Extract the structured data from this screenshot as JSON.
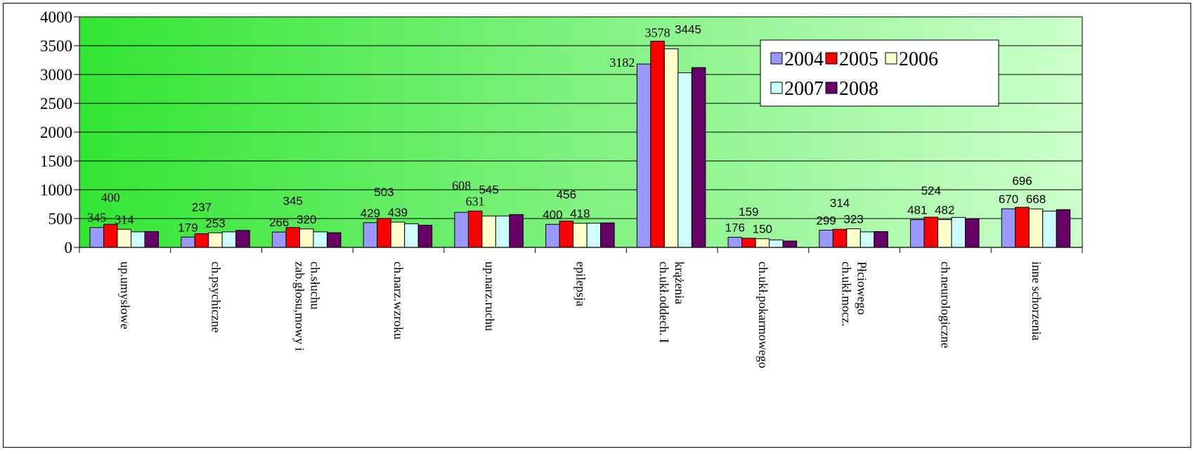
{
  "chart_data": {
    "type": "bar",
    "title": "",
    "xlabel": "",
    "ylabel": "",
    "ylim": [
      0,
      4000
    ],
    "yticks": [
      "0",
      "500",
      "1000",
      "1500",
      "2000",
      "2500",
      "3000",
      "3500",
      "4000"
    ],
    "grid": true,
    "legend_position": "top-right",
    "categories": [
      [
        "up.umysłowe"
      ],
      [
        "ch.psychiczne"
      ],
      [
        "zab.głosu,mowy i",
        "ch.słuchu"
      ],
      [
        "ch.narz.wzroku"
      ],
      [
        "up.narz.ruchu"
      ],
      [
        "epilepsja"
      ],
      [
        "ch.ukł.oddech. I",
        "krążenia"
      ],
      [
        "ch.ukł.pokarmowego"
      ],
      [
        "ch.ukł.mocz.",
        "Płciowego"
      ],
      [
        "ch.neurologiczne"
      ],
      [
        "inne schorzenia"
      ]
    ],
    "series": [
      {
        "name": "2004",
        "color": "#9999ff",
        "values": [
          345,
          179,
          266,
          429,
          608,
          400,
          3182,
          176,
          299,
          481,
          670
        ]
      },
      {
        "name": "2005",
        "color": "#ff0000",
        "values": [
          400,
          237,
          345,
          503,
          631,
          456,
          3578,
          159,
          314,
          524,
          696
        ]
      },
      {
        "name": "2006",
        "color": "#ffffcc",
        "values": [
          314,
          253,
          320,
          439,
          545,
          418,
          3445,
          150,
          323,
          482,
          668
        ]
      },
      {
        "name": "2007",
        "color": "#ccffff",
        "values": [
          270,
          270,
          270,
          410,
          545,
          420,
          3030,
          130,
          270,
          520,
          630
        ]
      },
      {
        "name": "2008",
        "color": "#660066",
        "values": [
          275,
          295,
          255,
          385,
          570,
          425,
          3120,
          110,
          275,
          495,
          655
        ]
      }
    ],
    "data_labels": [
      {
        "text": "345",
        "cat": 0,
        "series": 0,
        "font": "serif",
        "row": 0
      },
      {
        "text": "400",
        "cat": 0,
        "series": 1,
        "font": "serif",
        "row": 1
      },
      {
        "text": "314",
        "cat": 0,
        "series": 2,
        "font": "serif",
        "row": 0
      },
      {
        "text": "179",
        "cat": 1,
        "series": 0,
        "font": "sans",
        "row": 0
      },
      {
        "text": "237",
        "cat": 1,
        "series": 1,
        "font": "sans",
        "row": 1
      },
      {
        "text": "253",
        "cat": 1,
        "series": 2,
        "font": "sans",
        "row": 0
      },
      {
        "text": "266",
        "cat": 2,
        "series": 0,
        "font": "sans",
        "row": 0
      },
      {
        "text": "345",
        "cat": 2,
        "series": 1,
        "font": "sans",
        "row": 1
      },
      {
        "text": "320",
        "cat": 2,
        "series": 2,
        "font": "sans",
        "row": 0
      },
      {
        "text": "429",
        "cat": 3,
        "series": 0,
        "font": "sans",
        "row": 0
      },
      {
        "text": "503",
        "cat": 3,
        "series": 1,
        "font": "sans",
        "row": 1
      },
      {
        "text": "439",
        "cat": 3,
        "series": 2,
        "font": "sans",
        "row": 0
      },
      {
        "text": "608",
        "cat": 4,
        "series": 0,
        "font": "serif",
        "row": 1
      },
      {
        "text": "631",
        "cat": 4,
        "series": 1,
        "font": "serif",
        "row": 0
      },
      {
        "text": "545",
        "cat": 4,
        "series": 2,
        "font": "sans",
        "row": 1
      },
      {
        "text": "400",
        "cat": 5,
        "series": 0,
        "font": "sans",
        "row": 0
      },
      {
        "text": "456",
        "cat": 5,
        "series": 1,
        "font": "sans",
        "row": 1
      },
      {
        "text": "418",
        "cat": 5,
        "series": 2,
        "font": "sans",
        "row": 0
      },
      {
        "text": "3182",
        "cat": 6,
        "series": 0,
        "font": "serif",
        "row": 0
      },
      {
        "text": "3578",
        "cat": 6,
        "series": 1,
        "font": "serif",
        "row": 0
      },
      {
        "text": "3445",
        "cat": 6,
        "series": 2,
        "font": "sans",
        "row": 0
      },
      {
        "text": "176",
        "cat": 7,
        "series": 0,
        "font": "sans",
        "row": 0
      },
      {
        "text": "159",
        "cat": 7,
        "series": 1,
        "font": "sans",
        "row": 1
      },
      {
        "text": "150",
        "cat": 7,
        "series": 2,
        "font": "sans",
        "row": 0
      },
      {
        "text": "299",
        "cat": 8,
        "series": 0,
        "font": "sans",
        "row": 0
      },
      {
        "text": "314",
        "cat": 8,
        "series": 1,
        "font": "sans",
        "row": 1
      },
      {
        "text": "323",
        "cat": 8,
        "series": 2,
        "font": "sans",
        "row": 0
      },
      {
        "text": "481",
        "cat": 9,
        "series": 0,
        "font": "sans",
        "row": 0
      },
      {
        "text": "524",
        "cat": 9,
        "series": 1,
        "font": "sans",
        "row": 1
      },
      {
        "text": "482",
        "cat": 9,
        "series": 2,
        "font": "sans",
        "row": 0
      },
      {
        "text": "670",
        "cat": 10,
        "series": 0,
        "font": "sans",
        "row": 0
      },
      {
        "text": "696",
        "cat": 10,
        "series": 1,
        "font": "sans",
        "row": 1
      },
      {
        "text": "668",
        "cat": 10,
        "series": 2,
        "font": "sans",
        "row": 0
      }
    ]
  }
}
